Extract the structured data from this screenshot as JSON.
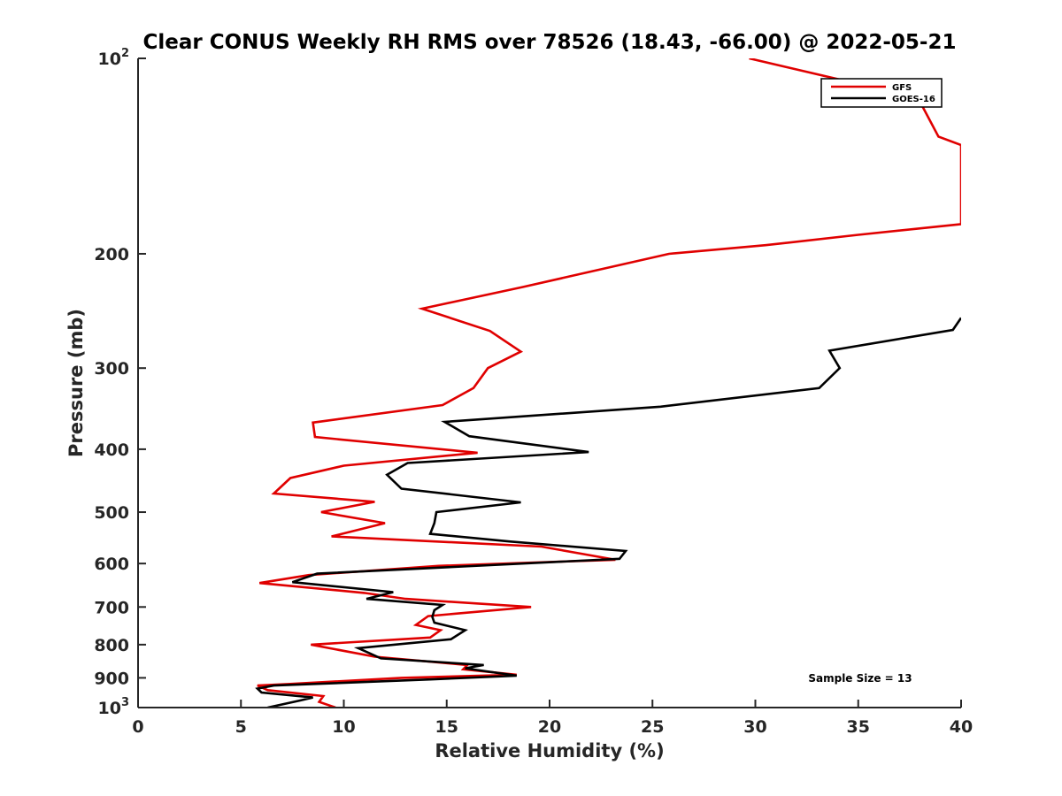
{
  "chart_data": {
    "type": "line",
    "title": "Clear CONUS Weekly RH RMS over 78526 (18.43, -66.00) @ 2022-05-21",
    "xlabel": "Relative Humidity (%)",
    "ylabel": "Pressure (mb)",
    "xlim": [
      0,
      40
    ],
    "ylim": [
      100,
      1000
    ],
    "y_scale": "log",
    "y_reversed": true,
    "xticks": [
      "0",
      "5",
      "10",
      "15",
      "20",
      "25",
      "30",
      "35",
      "40"
    ],
    "yticks": [
      {
        "value": 100,
        "label": "10",
        "sup": "2"
      },
      {
        "value": 200,
        "label": "200"
      },
      {
        "value": 300,
        "label": "300"
      },
      {
        "value": 400,
        "label": "400"
      },
      {
        "value": 500,
        "label": "500"
      },
      {
        "value": 600,
        "label": "600"
      },
      {
        "value": 700,
        "label": "700"
      },
      {
        "value": 800,
        "label": "800"
      },
      {
        "value": 900,
        "label": "900"
      },
      {
        "value": 1000,
        "label": "10",
        "sup": "3"
      }
    ],
    "legend_position": "top-right",
    "annotation": "Sample Size = 13",
    "grid": false,
    "series": [
      {
        "name": "GFS",
        "color": "#e00000",
        "points": [
          [
            29.7,
            100
          ],
          [
            37.9,
            115
          ],
          [
            38.9,
            132
          ],
          [
            40.0,
            136
          ],
          [
            40.0,
            180
          ],
          [
            35.0,
            187
          ],
          [
            30.5,
            194
          ],
          [
            25.8,
            200
          ],
          [
            18.7,
            225
          ],
          [
            13.8,
            243
          ],
          [
            17.1,
            263
          ],
          [
            18.6,
            283
          ],
          [
            17.0,
            300
          ],
          [
            16.3,
            322
          ],
          [
            14.8,
            342
          ],
          [
            8.5,
            364
          ],
          [
            8.6,
            383
          ],
          [
            16.5,
            405
          ],
          [
            10.0,
            424
          ],
          [
            7.4,
            443
          ],
          [
            6.6,
            468
          ],
          [
            11.5,
            482
          ],
          [
            8.9,
            500
          ],
          [
            12.0,
            520
          ],
          [
            9.4,
            545
          ],
          [
            19.6,
            565
          ],
          [
            23.2,
            592
          ],
          [
            14.6,
            605
          ],
          [
            8.3,
            625
          ],
          [
            5.9,
            643
          ],
          [
            11.0,
            666
          ],
          [
            13.0,
            680
          ],
          [
            19.1,
            700
          ],
          [
            14.1,
            723
          ],
          [
            13.5,
            746
          ],
          [
            14.7,
            760
          ],
          [
            14.2,
            780
          ],
          [
            8.4,
            800
          ],
          [
            11.5,
            835
          ],
          [
            16.0,
            860
          ],
          [
            15.8,
            873
          ],
          [
            18.4,
            890
          ],
          [
            12.8,
            900
          ],
          [
            7.3,
            920
          ],
          [
            5.8,
            925
          ],
          [
            6.3,
            940
          ],
          [
            9.0,
            960
          ],
          [
            8.8,
            980
          ],
          [
            9.6,
            1000
          ]
        ]
      },
      {
        "name": "GOES-16",
        "color": "#000000",
        "points": [
          [
            40.0,
            251
          ],
          [
            39.6,
            262
          ],
          [
            33.6,
            282
          ],
          [
            34.1,
            300
          ],
          [
            33.1,
            322
          ],
          [
            25.4,
            344
          ],
          [
            14.9,
            363
          ],
          [
            16.1,
            382
          ],
          [
            21.9,
            404
          ],
          [
            13.1,
            420
          ],
          [
            12.1,
            438
          ],
          [
            12.8,
            460
          ],
          [
            18.6,
            483
          ],
          [
            14.5,
            500
          ],
          [
            14.4,
            520
          ],
          [
            14.2,
            540
          ],
          [
            18.1,
            555
          ],
          [
            23.7,
            574
          ],
          [
            23.4,
            590
          ],
          [
            8.7,
            622
          ],
          [
            7.5,
            641
          ],
          [
            12.4,
            664
          ],
          [
            11.1,
            680
          ],
          [
            14.8,
            695
          ],
          [
            14.4,
            708
          ],
          [
            14.3,
            725
          ],
          [
            14.4,
            740
          ],
          [
            15.9,
            760
          ],
          [
            15.2,
            785
          ],
          [
            10.7,
            810
          ],
          [
            11.8,
            840
          ],
          [
            16.8,
            860
          ],
          [
            15.9,
            870
          ],
          [
            18.4,
            893
          ],
          [
            14.2,
            905
          ],
          [
            6.6,
            925
          ],
          [
            5.8,
            935
          ],
          [
            6.0,
            948
          ],
          [
            8.5,
            965
          ],
          [
            7.9,
            975
          ],
          [
            6.3,
            1000
          ]
        ]
      }
    ]
  }
}
